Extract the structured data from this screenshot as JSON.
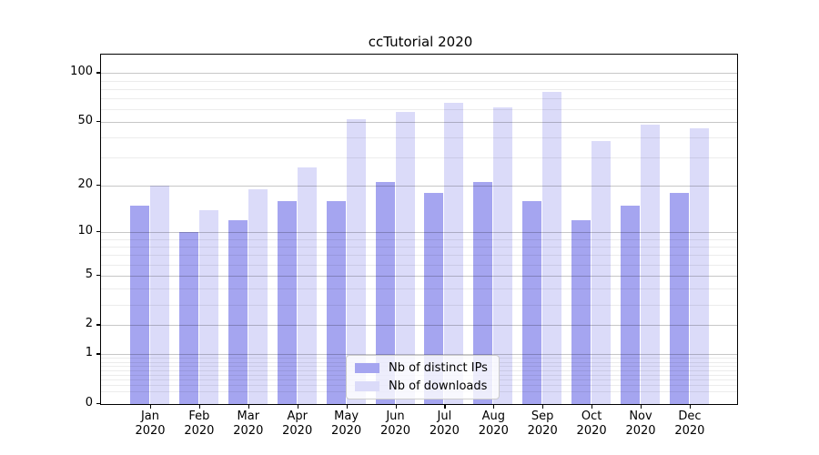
{
  "chart_data": {
    "type": "bar",
    "title": "ccTutorial 2020",
    "categories": [
      "Jan",
      "Feb",
      "Mar",
      "Apr",
      "May",
      "Jun",
      "Jul",
      "Aug",
      "Sep",
      "Oct",
      "Nov",
      "Dec"
    ],
    "category_year": "2020",
    "series": [
      {
        "name": "Nb of distinct IPs",
        "color": "#a5a5f0",
        "values": [
          15,
          10,
          12,
          16,
          16,
          21,
          18,
          21,
          16,
          12,
          15,
          18
        ]
      },
      {
        "name": "Nb of downloads",
        "color": "#dbdbf9",
        "values": [
          20,
          14,
          19,
          26,
          52,
          58,
          66,
          62,
          77,
          38,
          48,
          46
        ]
      }
    ],
    "xlabel": "",
    "ylabel": "",
    "yscale": "symlog",
    "ylim": [
      0,
      129
    ],
    "yticks": [
      0,
      1,
      2,
      5,
      10,
      20,
      50,
      100
    ],
    "ytick_labels": [
      "0",
      "1",
      "2",
      "5",
      "10",
      "20",
      "50",
      "100"
    ],
    "minor_yticks": [
      0.2,
      0.3,
      0.4,
      0.5,
      0.6,
      0.7,
      0.8,
      0.9,
      3,
      4,
      6,
      7,
      8,
      9,
      30,
      40,
      60,
      70,
      80,
      90
    ],
    "grid": {
      "orientation": "horizontal",
      "major_color": "#c6c6c6",
      "minor_color": "#ececec",
      "drawn_above_bars": true
    },
    "legend": {
      "position": "lower center",
      "items": [
        "Nb of distinct IPs",
        "Nb of downloads"
      ]
    }
  }
}
